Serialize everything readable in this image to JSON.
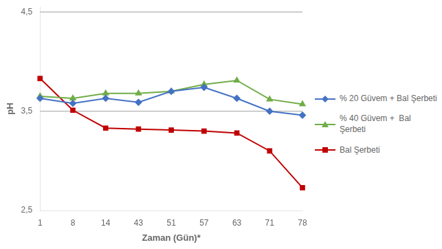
{
  "chart_data": {
    "type": "line",
    "categories": [
      "1",
      "8",
      "14",
      "43",
      "51",
      "57",
      "63",
      "71",
      "78"
    ],
    "series": [
      {
        "name": "% 20 Güvem + Bal Şerbeti",
        "color": "#4472C4",
        "marker": "diamond",
        "values": [
          3.63,
          3.58,
          3.63,
          3.59,
          3.7,
          3.74,
          3.63,
          3.5,
          3.46
        ]
      },
      {
        "name": "% 40 Güvem +  Bal\nŞerbeti",
        "color": "#70AD47",
        "marker": "triangle",
        "values": [
          3.65,
          3.63,
          3.68,
          3.68,
          3.7,
          3.77,
          3.81,
          3.62,
          3.57
        ]
      },
      {
        "name": "Bal Şerbeti",
        "color": "#C00000",
        "marker": "square",
        "values": [
          3.83,
          3.51,
          3.33,
          3.32,
          3.31,
          3.3,
          3.28,
          3.1,
          2.73
        ]
      }
    ],
    "x_label": "Zaman (Gün)*",
    "y_label": "pH",
    "ylim": [
      2.5,
      4.55
    ],
    "yticks": [
      {
        "value": 2.5,
        "label": "2,5"
      },
      {
        "value": 3.5,
        "label": "3,5"
      },
      {
        "value": 4.5,
        "label": "4,5"
      }
    ],
    "hlines": [
      {
        "value": 3.5,
        "color": "#A0A0A0"
      },
      {
        "value": 4.5,
        "color": "#A0A0A0"
      }
    ],
    "grid": false,
    "legend": "right"
  }
}
